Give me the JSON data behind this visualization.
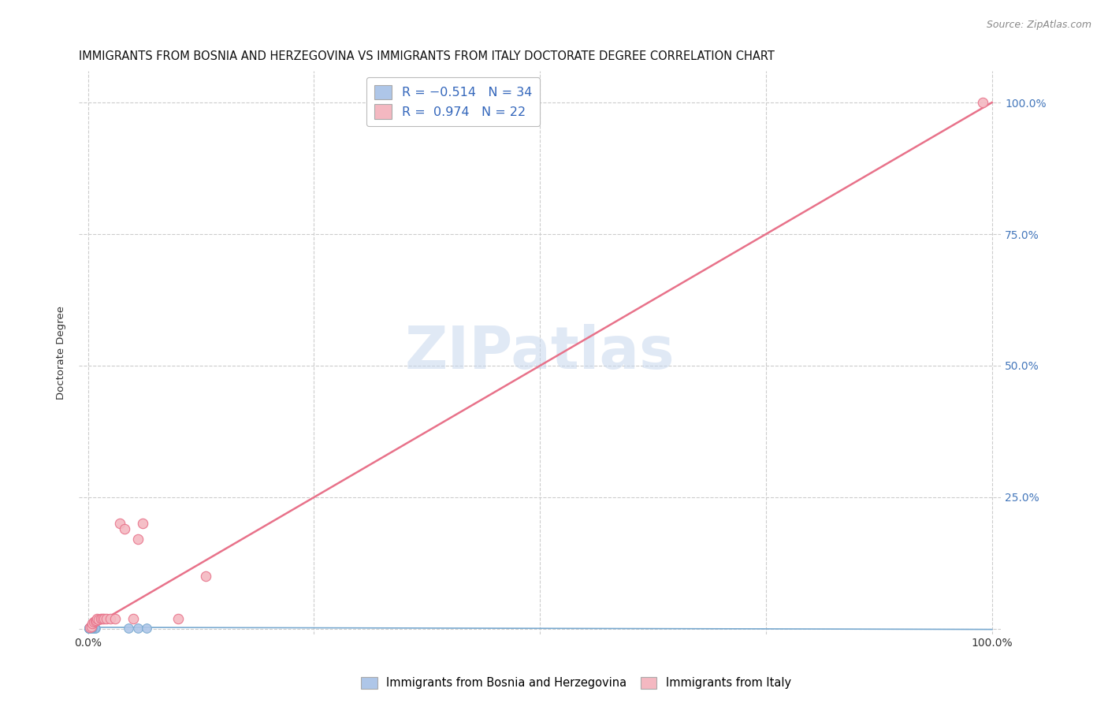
{
  "title": "IMMIGRANTS FROM BOSNIA AND HERZEGOVINA VS IMMIGRANTS FROM ITALY DOCTORATE DEGREE CORRELATION CHART",
  "source": "Source: ZipAtlas.com",
  "ylabel": "Doctorate Degree",
  "x_ticks": [
    0.0,
    0.25,
    0.5,
    0.75,
    1.0
  ],
  "y_ticks": [
    0.0,
    0.25,
    0.5,
    0.75,
    1.0
  ],
  "xlim": [
    -0.01,
    1.01
  ],
  "ylim": [
    -0.01,
    1.06
  ],
  "legend_bottom": [
    {
      "label": "Immigrants from Bosnia and Herzegovina",
      "color": "#aec6e8"
    },
    {
      "label": "Immigrants from Italy",
      "color": "#f4b8c1"
    }
  ],
  "watermark": "ZIPatlas",
  "background_color": "#ffffff",
  "grid_color": "#cccccc",
  "series_bosnia": {
    "color": "#aec6e8",
    "edge_color": "#7aaad0",
    "x": [
      0.001,
      0.002,
      0.003,
      0.002,
      0.001,
      0.004,
      0.005,
      0.003,
      0.002,
      0.001,
      0.006,
      0.002,
      0.003,
      0.004,
      0.002,
      0.001,
      0.008,
      0.003,
      0.002,
      0.001,
      0.005,
      0.003,
      0.007,
      0.002,
      0.001,
      0.045,
      0.055,
      0.065,
      0.005,
      0.004,
      0.003,
      0.002,
      0.001,
      0.003
    ],
    "y": [
      0.001,
      0.002,
      0.001,
      0.001,
      0.002,
      0.001,
      0.001,
      0.001,
      0.001,
      0.001,
      0.001,
      0.001,
      0.001,
      0.001,
      0.001,
      0.001,
      0.001,
      0.001,
      0.001,
      0.001,
      0.001,
      0.001,
      0.001,
      0.001,
      0.001,
      0.001,
      0.001,
      0.001,
      0.001,
      0.001,
      0.001,
      0.001,
      0.001,
      0.001
    ],
    "trend_x": [
      0.0,
      1.0
    ],
    "trend_y": [
      0.003,
      -0.001
    ],
    "trend_color": "#7aaad0"
  },
  "series_italy": {
    "color": "#f4b8c1",
    "edge_color": "#e8728a",
    "x": [
      0.002,
      0.004,
      0.005,
      0.006,
      0.008,
      0.009,
      0.01,
      0.012,
      0.014,
      0.016,
      0.018,
      0.02,
      0.025,
      0.03,
      0.035,
      0.04,
      0.05,
      0.055,
      0.06,
      0.1,
      0.13,
      0.99
    ],
    "y": [
      0.003,
      0.005,
      0.01,
      0.013,
      0.015,
      0.017,
      0.02,
      0.018,
      0.02,
      0.02,
      0.02,
      0.02,
      0.02,
      0.02,
      0.2,
      0.19,
      0.02,
      0.17,
      0.2,
      0.02,
      0.1,
      1.0
    ],
    "trend_x": [
      0.0,
      1.0
    ],
    "trend_y": [
      0.0,
      1.0
    ],
    "trend_color": "#e8728a"
  }
}
